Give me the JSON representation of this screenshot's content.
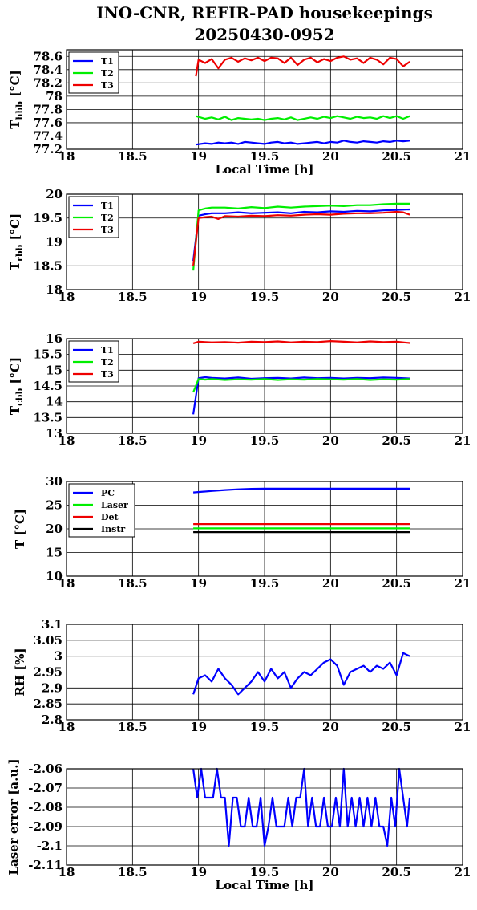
{
  "title": "INO-CNR, REFIR-PAD housekeepings",
  "subtitle": "20250430-0952",
  "chart_data": [
    {
      "type": "line",
      "ylabel_main": "T",
      "ylabel_sub": "hbb",
      "ylabel_unit": " [°C]",
      "xlabel": "Local Time [h]",
      "xlim": [
        18,
        21
      ],
      "ylim": [
        77.2,
        78.7
      ],
      "xticks": [
        18,
        18.5,
        19,
        19.5,
        20,
        20.5,
        21
      ],
      "yticks": [
        77.2,
        77.4,
        77.6,
        77.8,
        78,
        78.2,
        78.4,
        78.6
      ],
      "grid": true,
      "legend": "top-left",
      "series": [
        {
          "name": "T1",
          "color": "#0000ff",
          "x": [
            18.98,
            19.05,
            19.1,
            19.15,
            19.2,
            19.25,
            19.3,
            19.35,
            19.4,
            19.45,
            19.5,
            19.55,
            19.6,
            19.65,
            19.7,
            19.75,
            19.8,
            19.85,
            19.9,
            19.95,
            20.0,
            20.05,
            20.1,
            20.15,
            20.2,
            20.25,
            20.3,
            20.35,
            20.4,
            20.45,
            20.5,
            20.55,
            20.6
          ],
          "y": [
            77.27,
            77.29,
            77.28,
            77.3,
            77.29,
            77.3,
            77.28,
            77.31,
            77.3,
            77.29,
            77.28,
            77.3,
            77.31,
            77.29,
            77.3,
            77.28,
            77.29,
            77.3,
            77.31,
            77.29,
            77.31,
            77.3,
            77.33,
            77.31,
            77.3,
            77.32,
            77.31,
            77.3,
            77.32,
            77.31,
            77.33,
            77.32,
            77.33
          ]
        },
        {
          "name": "T2",
          "color": "#00ee00",
          "x": [
            18.98,
            19.05,
            19.1,
            19.15,
            19.2,
            19.25,
            19.3,
            19.35,
            19.4,
            19.45,
            19.5,
            19.55,
            19.6,
            19.65,
            19.7,
            19.75,
            19.8,
            19.85,
            19.9,
            19.95,
            20.0,
            20.05,
            20.1,
            20.15,
            20.2,
            20.25,
            20.3,
            20.35,
            20.4,
            20.45,
            20.5,
            20.55,
            20.6
          ],
          "y": [
            77.7,
            77.66,
            77.68,
            77.65,
            77.69,
            77.64,
            77.67,
            77.66,
            77.65,
            77.66,
            77.64,
            77.66,
            77.67,
            77.65,
            77.68,
            77.64,
            77.66,
            77.68,
            77.66,
            77.69,
            77.67,
            77.7,
            77.68,
            77.66,
            77.69,
            77.67,
            77.68,
            77.66,
            77.7,
            77.67,
            77.7,
            77.66,
            77.7
          ]
        },
        {
          "name": "T3",
          "color": "#ee0000",
          "x": [
            18.98,
            19.0,
            19.05,
            19.1,
            19.15,
            19.2,
            19.25,
            19.3,
            19.35,
            19.4,
            19.45,
            19.5,
            19.55,
            19.6,
            19.65,
            19.7,
            19.75,
            19.8,
            19.85,
            19.9,
            19.95,
            20.0,
            20.05,
            20.1,
            20.15,
            20.2,
            20.25,
            20.3,
            20.35,
            20.4,
            20.45,
            20.5,
            20.55,
            20.6
          ],
          "y": [
            78.3,
            78.55,
            78.5,
            78.56,
            78.42,
            78.55,
            78.58,
            78.52,
            78.57,
            78.54,
            78.58,
            78.53,
            78.58,
            78.57,
            78.5,
            78.58,
            78.47,
            78.55,
            78.58,
            78.51,
            78.56,
            78.53,
            78.58,
            78.6,
            78.55,
            78.57,
            78.5,
            78.58,
            78.55,
            78.48,
            78.58,
            78.56,
            78.45,
            78.52
          ]
        }
      ]
    },
    {
      "type": "line",
      "ylabel_main": "T",
      "ylabel_sub": "rbb",
      "ylabel_unit": " [°C]",
      "xlabel": "",
      "xlim": [
        18,
        21
      ],
      "ylim": [
        18,
        20
      ],
      "xticks": [
        18,
        18.5,
        19,
        19.5,
        20,
        20.5,
        21
      ],
      "yticks": [
        18,
        18.5,
        19,
        19.5,
        20
      ],
      "grid": true,
      "legend": "top-left",
      "series": [
        {
          "name": "T1",
          "color": "#0000ff",
          "x": [
            18.96,
            19.0,
            19.05,
            19.1,
            19.2,
            19.3,
            19.4,
            19.5,
            19.6,
            19.7,
            19.8,
            19.9,
            20.0,
            20.1,
            20.2,
            20.3,
            20.4,
            20.5,
            20.6
          ],
          "y": [
            18.6,
            19.55,
            19.58,
            19.6,
            19.6,
            19.62,
            19.6,
            19.61,
            19.62,
            19.6,
            19.63,
            19.62,
            19.64,
            19.63,
            19.65,
            19.64,
            19.66,
            19.67,
            19.68
          ]
        },
        {
          "name": "T2",
          "color": "#00ee00",
          "x": [
            18.96,
            19.0,
            19.05,
            19.1,
            19.2,
            19.3,
            19.4,
            19.5,
            19.6,
            19.7,
            19.8,
            19.9,
            20.0,
            20.1,
            20.2,
            20.3,
            20.4,
            20.5,
            20.6
          ],
          "y": [
            18.4,
            19.66,
            19.7,
            19.72,
            19.72,
            19.7,
            19.73,
            19.71,
            19.74,
            19.72,
            19.74,
            19.75,
            19.76,
            19.75,
            19.77,
            19.77,
            19.79,
            19.8,
            19.8
          ]
        },
        {
          "name": "T3",
          "color": "#ee0000",
          "x": [
            18.96,
            19.0,
            19.05,
            19.1,
            19.15,
            19.2,
            19.3,
            19.4,
            19.5,
            19.6,
            19.7,
            19.8,
            19.9,
            20.0,
            20.1,
            20.2,
            20.3,
            20.4,
            20.5,
            20.55,
            20.6
          ],
          "y": [
            18.5,
            19.5,
            19.52,
            19.53,
            19.48,
            19.54,
            19.53,
            19.55,
            19.54,
            19.56,
            19.55,
            19.57,
            19.58,
            19.57,
            19.59,
            19.6,
            19.6,
            19.61,
            19.63,
            19.62,
            19.57
          ]
        }
      ]
    },
    {
      "type": "line",
      "ylabel_main": "T",
      "ylabel_sub": "cbb",
      "ylabel_unit": " [°C]",
      "xlabel": "",
      "xlim": [
        18,
        21
      ],
      "ylim": [
        13,
        16
      ],
      "xticks": [
        18,
        18.5,
        19,
        19.5,
        20,
        20.5,
        21
      ],
      "yticks": [
        13,
        13.5,
        14,
        14.5,
        15,
        15.5,
        16
      ],
      "grid": true,
      "legend": "top-left",
      "series": [
        {
          "name": "T1",
          "color": "#0000ff",
          "x": [
            18.96,
            19.0,
            19.05,
            19.1,
            19.2,
            19.3,
            19.4,
            19.5,
            19.6,
            19.7,
            19.8,
            19.9,
            20.0,
            20.1,
            20.2,
            20.3,
            20.4,
            20.5,
            20.6
          ],
          "y": [
            13.6,
            14.75,
            14.78,
            14.76,
            14.74,
            14.77,
            14.73,
            14.75,
            14.76,
            14.74,
            14.77,
            14.75,
            14.76,
            14.74,
            14.76,
            14.75,
            14.77,
            14.76,
            14.74
          ]
        },
        {
          "name": "T2",
          "color": "#00ee00",
          "x": [
            18.96,
            19.0,
            19.05,
            19.1,
            19.2,
            19.3,
            19.4,
            19.5,
            19.6,
            19.7,
            19.8,
            19.9,
            20.0,
            20.1,
            20.2,
            20.3,
            20.4,
            20.5,
            20.6
          ],
          "y": [
            14.3,
            14.72,
            14.7,
            14.72,
            14.69,
            14.71,
            14.7,
            14.72,
            14.69,
            14.71,
            14.7,
            14.72,
            14.71,
            14.7,
            14.72,
            14.69,
            14.71,
            14.7,
            14.72
          ]
        },
        {
          "name": "T3",
          "color": "#ee0000",
          "x": [
            18.96,
            19.0,
            19.1,
            19.2,
            19.3,
            19.4,
            19.5,
            19.6,
            19.7,
            19.8,
            19.9,
            20.0,
            20.1,
            20.2,
            20.3,
            20.4,
            20.5,
            20.6
          ],
          "y": [
            15.85,
            15.9,
            15.88,
            15.89,
            15.87,
            15.9,
            15.89,
            15.91,
            15.88,
            15.9,
            15.89,
            15.92,
            15.9,
            15.88,
            15.91,
            15.89,
            15.9,
            15.86
          ]
        }
      ]
    },
    {
      "type": "line",
      "ylabel_main": "T [°C]",
      "ylabel_sub": "",
      "ylabel_unit": "",
      "xlabel": "",
      "xlim": [
        18,
        21
      ],
      "ylim": [
        10,
        30
      ],
      "xticks": [
        18,
        18.5,
        19,
        19.5,
        20,
        20.5,
        21
      ],
      "yticks": [
        10,
        15,
        20,
        25,
        30
      ],
      "grid": true,
      "legend": "top-left",
      "series": [
        {
          "name": "PC",
          "color": "#0000ff",
          "x": [
            18.96,
            19.1,
            19.2,
            19.3,
            19.4,
            19.5,
            19.6,
            20.0,
            20.6
          ],
          "y": [
            27.7,
            28.0,
            28.2,
            28.35,
            28.45,
            28.5,
            28.5,
            28.5,
            28.5
          ]
        },
        {
          "name": "Laser",
          "color": "#00ee00",
          "x": [
            18.96,
            20.6
          ],
          "y": [
            20.1,
            20.1
          ]
        },
        {
          "name": "Det",
          "color": "#ee0000",
          "x": [
            18.96,
            20.6
          ],
          "y": [
            21.0,
            21.0
          ]
        },
        {
          "name": "Instr",
          "color": "#000000",
          "x": [
            18.96,
            20.6
          ],
          "y": [
            19.3,
            19.3
          ]
        }
      ]
    },
    {
      "type": "line",
      "ylabel_main": "RH [%]",
      "ylabel_sub": "",
      "ylabel_unit": "",
      "xlabel": "",
      "xlim": [
        18,
        21
      ],
      "ylim": [
        2.8,
        3.1
      ],
      "xticks": [
        18,
        18.5,
        19,
        19.5,
        20,
        20.5,
        21
      ],
      "yticks": [
        2.8,
        2.85,
        2.9,
        2.95,
        3,
        3.05,
        3.1
      ],
      "grid": true,
      "legend": "none",
      "series": [
        {
          "color": "#0000ff",
          "x": [
            18.96,
            19.0,
            19.05,
            19.1,
            19.15,
            19.2,
            19.25,
            19.3,
            19.35,
            19.4,
            19.45,
            19.5,
            19.55,
            19.6,
            19.65,
            19.7,
            19.75,
            19.8,
            19.85,
            19.9,
            19.95,
            20.0,
            20.05,
            20.1,
            20.15,
            20.2,
            20.25,
            20.3,
            20.35,
            20.4,
            20.45,
            20.5,
            20.55,
            20.6
          ],
          "y": [
            2.88,
            2.93,
            2.94,
            2.92,
            2.96,
            2.93,
            2.91,
            2.88,
            2.9,
            2.92,
            2.95,
            2.92,
            2.96,
            2.93,
            2.95,
            2.9,
            2.93,
            2.95,
            2.94,
            2.96,
            2.98,
            2.99,
            2.97,
            2.91,
            2.95,
            2.96,
            2.97,
            2.95,
            2.97,
            2.96,
            2.98,
            2.94,
            3.01,
            3.0
          ]
        }
      ]
    },
    {
      "type": "line",
      "ylabel_main": "Laser error [a.u.]",
      "ylabel_sub": "",
      "ylabel_unit": "",
      "xlabel": "Local Time [h]",
      "xlim": [
        18,
        21
      ],
      "ylim": [
        -2.11,
        -2.06
      ],
      "xticks": [
        18,
        18.5,
        19,
        19.5,
        20,
        20.5,
        21
      ],
      "yticks": [
        -2.11,
        -2.1,
        -2.09,
        -2.08,
        -2.07,
        -2.06
      ],
      "grid": true,
      "legend": "none",
      "series": [
        {
          "color": "#0000ff",
          "x": [
            18.96,
            18.99,
            19.02,
            19.05,
            19.08,
            19.11,
            19.14,
            19.17,
            19.2,
            19.23,
            19.26,
            19.29,
            19.32,
            19.35,
            19.38,
            19.41,
            19.44,
            19.47,
            19.5,
            19.53,
            19.56,
            19.59,
            19.62,
            19.65,
            19.68,
            19.71,
            19.74,
            19.77,
            19.8,
            19.83,
            19.86,
            19.89,
            19.92,
            19.95,
            19.98,
            20.01,
            20.04,
            20.07,
            20.1,
            20.13,
            20.16,
            20.19,
            20.22,
            20.25,
            20.28,
            20.31,
            20.34,
            20.37,
            20.4,
            20.43,
            20.46,
            20.49,
            20.52,
            20.55,
            20.58,
            20.6
          ],
          "y": [
            -2.06,
            -2.075,
            -2.06,
            -2.075,
            -2.075,
            -2.075,
            -2.06,
            -2.075,
            -2.075,
            -2.1,
            -2.075,
            -2.075,
            -2.09,
            -2.09,
            -2.075,
            -2.09,
            -2.09,
            -2.075,
            -2.1,
            -2.09,
            -2.075,
            -2.09,
            -2.09,
            -2.09,
            -2.075,
            -2.09,
            -2.075,
            -2.075,
            -2.06,
            -2.09,
            -2.075,
            -2.09,
            -2.09,
            -2.075,
            -2.09,
            -2.09,
            -2.075,
            -2.09,
            -2.06,
            -2.09,
            -2.075,
            -2.09,
            -2.075,
            -2.09,
            -2.075,
            -2.09,
            -2.075,
            -2.09,
            -2.09,
            -2.1,
            -2.075,
            -2.09,
            -2.06,
            -2.075,
            -2.09,
            -2.075
          ]
        }
      ]
    }
  ]
}
